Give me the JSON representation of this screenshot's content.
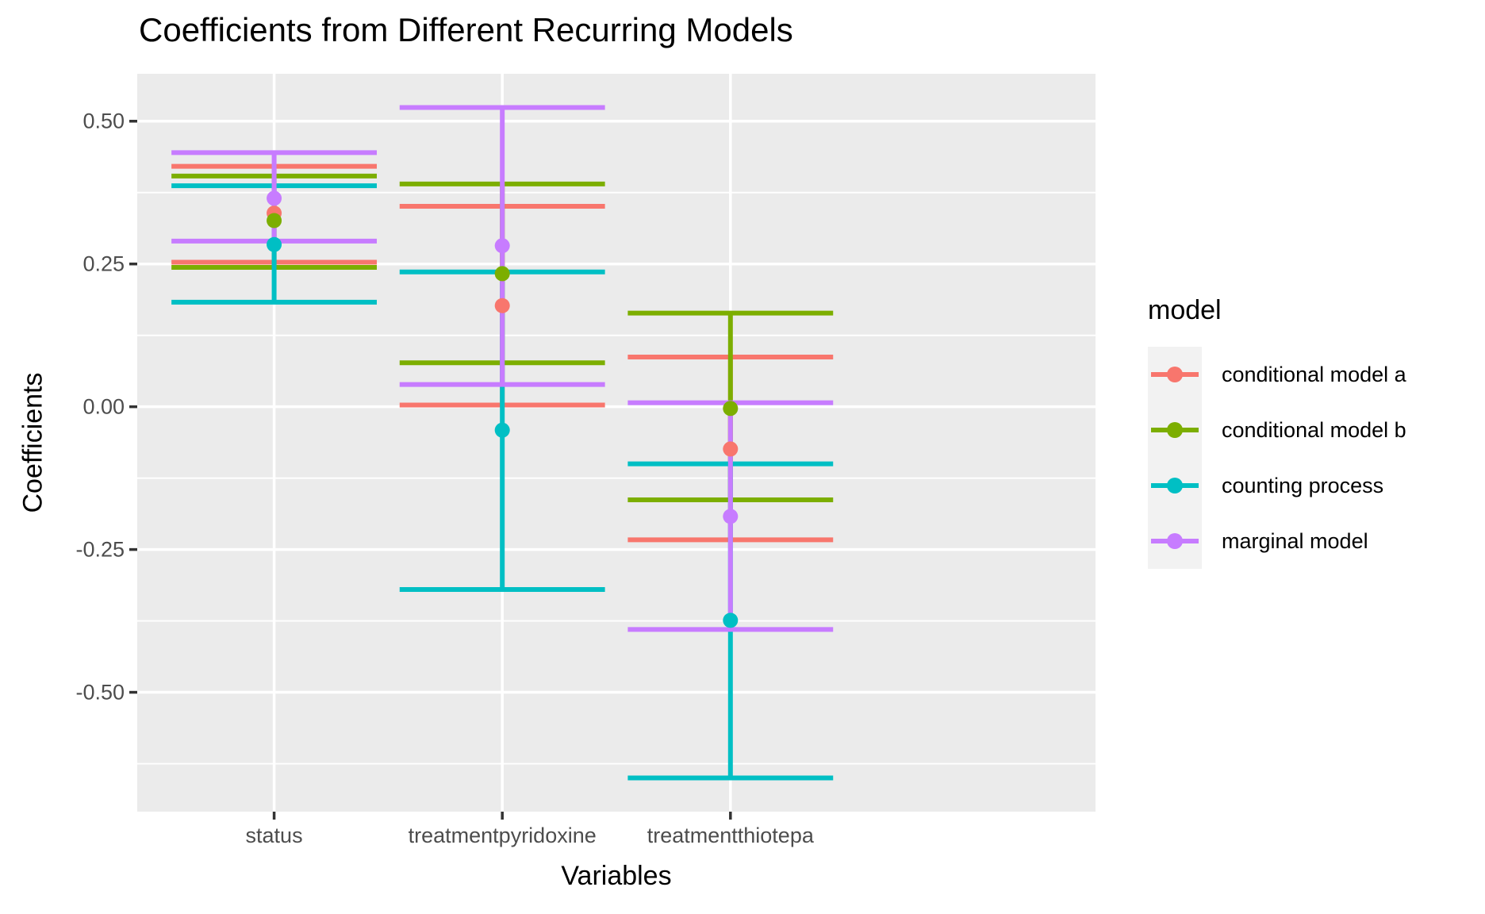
{
  "title": "Coefficients from Different Recurring Models",
  "axes": {
    "x": {
      "title": "Variables",
      "categories": [
        "status",
        "treatmentpyridoxine",
        "treatmentthiotepa"
      ]
    },
    "y": {
      "title": "Coefficients",
      "tick_labels": [
        "0.50",
        "0.25",
        "0.00",
        "-0.25",
        "-0.50"
      ]
    }
  },
  "legend": {
    "title": "model",
    "items": [
      {
        "label": "conditional model a",
        "color": "#F8766D"
      },
      {
        "label": "conditional model b",
        "color": "#7CAE00"
      },
      {
        "label": "counting process",
        "color": "#00BFC4"
      },
      {
        "label": "marginal model",
        "color": "#C77CFF"
      }
    ]
  },
  "chart_data": {
    "type": "errorbar",
    "title": "Coefficients from Different Recurring Models",
    "xlabel": "Variables",
    "ylabel": "Coefficients",
    "categories": [
      "status",
      "treatmentpyridoxine",
      "treatmentthiotepa"
    ],
    "ylim": [
      -0.709,
      0.583
    ],
    "y_major_ticks": [
      0.5,
      0.25,
      0,
      -0.25,
      -0.5
    ],
    "y_minor_ticks": [
      0.375,
      0.125,
      -0.125,
      -0.375,
      -0.625
    ],
    "legend_position": "right",
    "grid": true,
    "errorbar_width": 0.9,
    "series": [
      {
        "name": "conditional model a",
        "color": "#F8766D",
        "estimates": [
          0.339,
          0.177,
          -0.074
        ],
        "lower": [
          0.253,
          0.003,
          -0.233
        ],
        "upper": [
          0.421,
          0.351,
          0.087
        ]
      },
      {
        "name": "conditional model b",
        "color": "#7CAE00",
        "estimates": [
          0.326,
          0.233,
          -0.003
        ],
        "lower": [
          0.244,
          0.077,
          -0.163
        ],
        "upper": [
          0.404,
          0.39,
          0.164
        ]
      },
      {
        "name": "counting process",
        "color": "#00BFC4",
        "estimates": [
          0.284,
          -0.041,
          -0.374
        ],
        "lower": [
          0.183,
          -0.32,
          -0.65
        ],
        "upper": [
          0.387,
          0.236,
          -0.1
        ]
      },
      {
        "name": "marginal model",
        "color": "#C77CFF",
        "estimates": [
          0.365,
          0.282,
          -0.192
        ],
        "lower": [
          0.29,
          0.039,
          -0.39
        ],
        "upper": [
          0.445,
          0.524,
          0.007
        ]
      }
    ]
  },
  "colors": {
    "panel_background": "#EBEBEB",
    "gridline": "#FFFFFF",
    "axis_text": "#4D4D4D",
    "tick_mark": "#333333",
    "legend_key_background": "#F2F2F2",
    "text": "#000000"
  }
}
